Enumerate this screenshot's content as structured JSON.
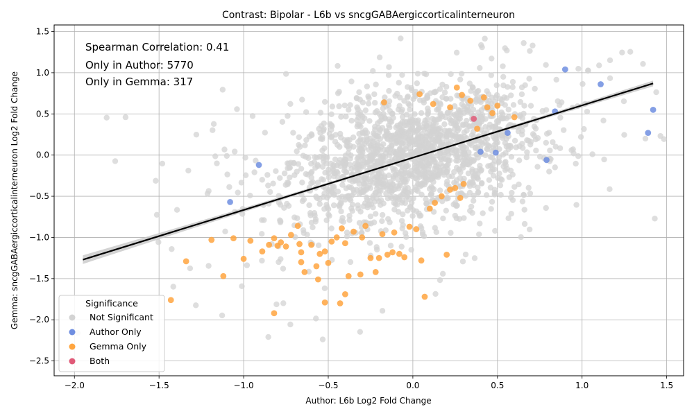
{
  "chart_data": {
    "type": "scatter",
    "title": "Contrast: Bipolar - L6b vs sncgGABAergiccorticalinterneuron",
    "xlabel": "Author: L6b Log2 Fold Change",
    "ylabel": "Gemma: sncgGABAergiccorticalinterneuron Log2 Fold Change",
    "xlim": [
      -2.12,
      1.6
    ],
    "ylim": [
      -2.68,
      1.58
    ],
    "xticks": [
      "−2.0",
      "−1.5",
      "−1.0",
      "−0.5",
      "0.0",
      "0.5",
      "1.0",
      "1.5"
    ],
    "xtick_values": [
      -2.0,
      -1.5,
      -1.0,
      -0.5,
      0.0,
      0.5,
      1.0,
      1.5
    ],
    "yticks": [
      "−2.5",
      "−2.0",
      "−1.5",
      "−1.0",
      "−0.5",
      "0.0",
      "0.5",
      "1.0",
      "1.5"
    ],
    "ytick_values": [
      -2.5,
      -2.0,
      -1.5,
      -1.0,
      -0.5,
      0.0,
      0.5,
      1.0,
      1.5
    ],
    "grid": true,
    "annotations": [
      "Spearman Correlation: 0.41",
      "Only in Author: 5770",
      "Only in Gemma: 317"
    ],
    "legend": {
      "title": "Significance",
      "placement": "lower-left",
      "entries": [
        "Not Significant",
        "Author Only",
        "Gemma Only",
        "Both"
      ]
    },
    "colors": {
      "not_significant": "#d3d3d3",
      "author_only": "#6f8ee0",
      "gemma_only": "#ffa53f",
      "both": "#e05a78",
      "regression": "#000000",
      "ci_band": "#c8c8c8"
    },
    "regression": {
      "x": [
        -1.95,
        1.42
      ],
      "y": [
        -1.27,
        0.87
      ]
    },
    "series": [
      {
        "name": "Author Only",
        "x": [
          0.9,
          1.11,
          1.42,
          1.39,
          0.84,
          0.79,
          0.56,
          0.4,
          0.49,
          -0.91,
          -1.08
        ],
        "y": [
          1.04,
          0.86,
          0.55,
          0.27,
          0.53,
          -0.06,
          0.27,
          0.04,
          0.03,
          -0.12,
          -0.57
        ]
      },
      {
        "name": "Both",
        "x": [
          0.36
        ],
        "y": [
          0.44
        ]
      },
      {
        "name": "Gemma Only",
        "x": [
          -1.43,
          -1.34,
          -1.19,
          -1.12,
          -1.06,
          -1.0,
          -0.96,
          -0.89,
          -0.85,
          -0.82,
          -0.8,
          -0.78,
          -0.75,
          -0.72,
          -0.68,
          -0.66,
          -0.64,
          -0.6,
          -0.57,
          -0.55,
          -0.52,
          -0.5,
          -0.48,
          -0.45,
          -0.42,
          -0.4,
          -0.38,
          -0.35,
          -0.3,
          -0.28,
          -0.25,
          -0.22,
          -0.2,
          -0.18,
          -0.15,
          -0.12,
          -0.08,
          -0.05,
          -0.02,
          0.02,
          0.05,
          0.07,
          0.1,
          0.13,
          0.17,
          0.2,
          0.22,
          0.25,
          0.28,
          0.3,
          0.34,
          0.38,
          0.42,
          0.47,
          0.5,
          0.6,
          0.04,
          -0.82,
          -0.52,
          -0.43,
          -0.66,
          -0.56,
          -0.67,
          -0.4,
          -0.31,
          -0.11,
          0.12,
          -0.17,
          0.22,
          0.26,
          0.29,
          0.44
        ],
        "y": [
          -1.76,
          -1.29,
          -1.03,
          -1.47,
          -1.01,
          -1.26,
          -1.04,
          -1.17,
          -1.09,
          -1.01,
          -1.1,
          -1.06,
          -1.11,
          -0.97,
          -0.86,
          -1.3,
          -1.42,
          -1.09,
          -1.35,
          -1.2,
          -1.17,
          -1.31,
          -1.05,
          -1.0,
          -0.89,
          -1.07,
          -1.47,
          -0.93,
          -1.0,
          -0.86,
          -1.25,
          -1.42,
          -1.25,
          -0.96,
          -1.21,
          -1.18,
          -1.2,
          -1.24,
          -0.87,
          -0.9,
          -1.28,
          -1.72,
          -0.65,
          -0.58,
          -0.5,
          -1.21,
          -0.42,
          -0.4,
          -0.52,
          -0.35,
          0.66,
          0.32,
          0.7,
          0.51,
          0.6,
          0.46,
          0.74,
          -1.92,
          -1.79,
          -1.8,
          -1.18,
          -1.51,
          -1.08,
          -1.69,
          -1.45,
          -0.94,
          0.62,
          0.64,
          0.58,
          0.82,
          0.73,
          0.58
        ]
      }
    ],
    "not_significant_cloud": {
      "approx_count": 1800,
      "center_x": 0.0,
      "center_y": 0.0,
      "spread_x": 0.35,
      "spread_y": 0.38
    }
  }
}
